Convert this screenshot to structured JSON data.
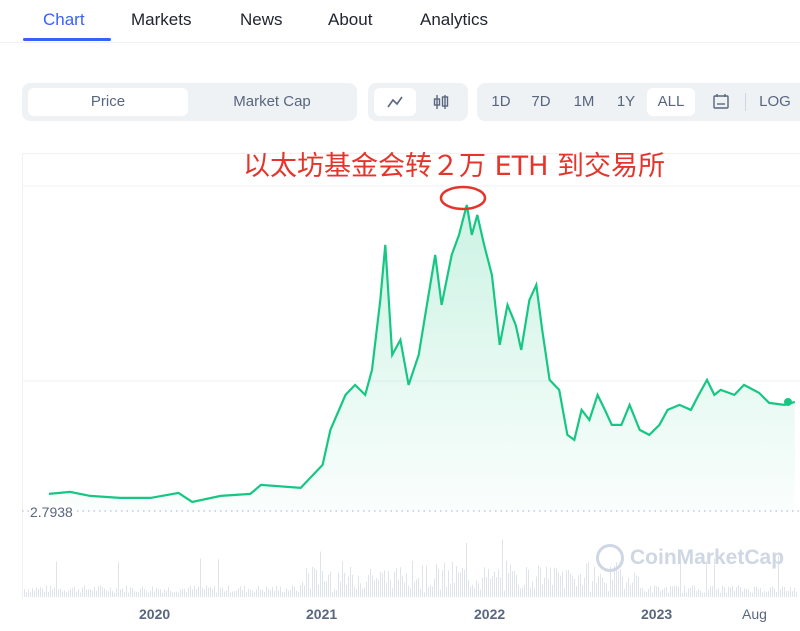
{
  "nav": {
    "tabs": [
      {
        "label": "Chart",
        "active": true
      },
      {
        "label": "Markets"
      },
      {
        "label": "News"
      },
      {
        "label": "About"
      },
      {
        "label": "Analytics"
      }
    ]
  },
  "controls": {
    "metric": {
      "options": [
        "Price",
        "Market Cap"
      ],
      "selected": "Price"
    },
    "chart_style": {
      "options": [
        "line-chart-icon",
        "candlestick-icon"
      ],
      "selected": "line-chart-icon"
    },
    "range": {
      "options": [
        "1D",
        "7D",
        "1M",
        "1Y",
        "ALL"
      ],
      "selected": "ALL",
      "calendar_icon": "calendar-icon",
      "log_label": "LOG"
    }
  },
  "annotation": {
    "text": "以太坊基金会转２万 ETH 到交易所",
    "color": "#e5352b",
    "marker": "red-ellipse-at-peak"
  },
  "watermark": "CoinMarketCap",
  "colors": {
    "line": "#16c784",
    "accent": "#3861fb",
    "annotation": "#e5352b"
  },
  "chart_data": {
    "type": "area",
    "title": "",
    "xlabel": "",
    "ylabel": "",
    "x_ticks": [
      "2020",
      "2021",
      "2022",
      "2023",
      "Aug"
    ],
    "baseline_label": "2.7938",
    "grid": true,
    "x": [
      "2019-05-10",
      "2019-06-25",
      "2019-08-08",
      "2019-10-12",
      "2019-12-18",
      "2020-02-17",
      "2020-03-18",
      "2020-05-19",
      "2020-07-23",
      "2020-08-15",
      "2020-11-10",
      "2020-12-28",
      "2021-01-15",
      "2021-02-17",
      "2021-03-10",
      "2021-04-01",
      "2021-04-16",
      "2021-05-04",
      "2021-05-15",
      "2021-05-30",
      "2021-06-17",
      "2021-07-05",
      "2021-07-27",
      "2021-08-14",
      "2021-09-01",
      "2021-09-15",
      "2021-10-07",
      "2021-10-23",
      "2021-11-09",
      "2021-11-20",
      "2021-12-02",
      "2021-12-17",
      "2022-01-03",
      "2022-01-20",
      "2022-02-06",
      "2022-02-24",
      "2022-03-08",
      "2022-03-26",
      "2022-04-10",
      "2022-04-23",
      "2022-05-09",
      "2022-05-30",
      "2022-06-17",
      "2022-07-02",
      "2022-07-18",
      "2022-08-04",
      "2022-08-22",
      "2022-09-07",
      "2022-09-22",
      "2022-10-13",
      "2022-10-31",
      "2022-11-22",
      "2022-12-13",
      "2023-01-04",
      "2023-01-22",
      "2023-02-17",
      "2023-03-14",
      "2023-03-31",
      "2023-04-18",
      "2023-05-04",
      "2023-05-18",
      "2023-06-17",
      "2023-07-08",
      "2023-08-10",
      "2023-09-01",
      "2023-10-04",
      "2023-10-27"
    ],
    "values": [
      4.5,
      4.7,
      4.3,
      4.1,
      4.1,
      4.6,
      3.7,
      4.3,
      4.5,
      5.4,
      5.1,
      7.4,
      10.9,
      14.4,
      15.4,
      14.4,
      16.9,
      23.9,
      29.4,
      18.4,
      19.9,
      15.4,
      18.4,
      23.4,
      28.4,
      23.4,
      28.4,
      30.4,
      33.4,
      30.4,
      32.4,
      29.4,
      26.4,
      19.4,
      23.4,
      21.4,
      18.9,
      23.9,
      25.4,
      20.9,
      15.9,
      14.9,
      10.4,
      9.9,
      12.9,
      11.9,
      14.4,
      12.9,
      11.4,
      11.4,
      13.4,
      10.9,
      10.4,
      11.4,
      12.9,
      13.4,
      12.9,
      14.4,
      15.9,
      14.4,
      14.9,
      14.4,
      15.4,
      14.6,
      13.6,
      13.4,
      13.7
    ]
  }
}
